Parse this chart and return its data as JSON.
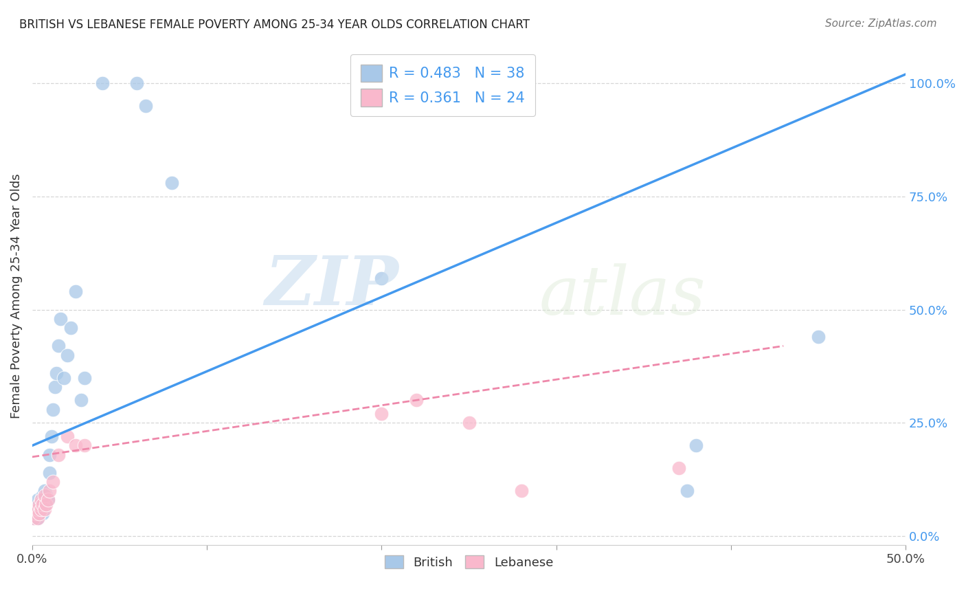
{
  "title": "BRITISH VS LEBANESE FEMALE POVERTY AMONG 25-34 YEAR OLDS CORRELATION CHART",
  "source": "Source: ZipAtlas.com",
  "ylabel": "Female Poverty Among 25-34 Year Olds",
  "xlim": [
    0.0,
    0.5
  ],
  "ylim": [
    -0.02,
    1.08
  ],
  "xticks": [
    0.0,
    0.1,
    0.2,
    0.3,
    0.4,
    0.5
  ],
  "xtick_labels": [
    "0.0%",
    "",
    "",
    "",
    "",
    "50.0%"
  ],
  "ytick_labels_right": [
    "100.0%",
    "75.0%",
    "50.0%",
    "25.0%",
    "0.0%"
  ],
  "ytick_positions_right": [
    1.0,
    0.75,
    0.5,
    0.25,
    0.0
  ],
  "british_R": 0.483,
  "british_N": 38,
  "lebanese_R": 0.361,
  "lebanese_N": 24,
  "british_color": "#A8C8E8",
  "lebanese_color": "#F9B8CC",
  "trend_british_color": "#4499EE",
  "trend_lebanese_color": "#EE88AA",
  "watermark_zip": "ZIP",
  "watermark_atlas": "atlas",
  "british_x": [
    0.001,
    0.002,
    0.002,
    0.003,
    0.003,
    0.003,
    0.004,
    0.004,
    0.005,
    0.005,
    0.006,
    0.006,
    0.007,
    0.007,
    0.008,
    0.009,
    0.01,
    0.01,
    0.011,
    0.012,
    0.013,
    0.014,
    0.015,
    0.016,
    0.018,
    0.02,
    0.022,
    0.025,
    0.028,
    0.03,
    0.04,
    0.06,
    0.065,
    0.08,
    0.2,
    0.375,
    0.38,
    0.45
  ],
  "british_y": [
    0.04,
    0.05,
    0.06,
    0.04,
    0.07,
    0.08,
    0.05,
    0.07,
    0.06,
    0.08,
    0.05,
    0.09,
    0.07,
    0.1,
    0.09,
    0.08,
    0.14,
    0.18,
    0.22,
    0.28,
    0.33,
    0.36,
    0.42,
    0.48,
    0.35,
    0.4,
    0.46,
    0.54,
    0.3,
    0.35,
    1.0,
    1.0,
    0.95,
    0.78,
    0.57,
    0.1,
    0.2,
    0.44
  ],
  "lebanese_x": [
    0.001,
    0.002,
    0.003,
    0.003,
    0.004,
    0.004,
    0.005,
    0.005,
    0.006,
    0.007,
    0.007,
    0.008,
    0.009,
    0.01,
    0.012,
    0.015,
    0.02,
    0.025,
    0.03,
    0.2,
    0.22,
    0.25,
    0.28,
    0.37
  ],
  "lebanese_y": [
    0.04,
    0.05,
    0.04,
    0.06,
    0.05,
    0.07,
    0.06,
    0.08,
    0.07,
    0.06,
    0.09,
    0.07,
    0.08,
    0.1,
    0.12,
    0.18,
    0.22,
    0.2,
    0.2,
    0.27,
    0.3,
    0.25,
    0.1,
    0.15
  ],
  "british_line_x": [
    0.0,
    0.5
  ],
  "british_line_y": [
    0.2,
    1.02
  ],
  "lebanese_line_x": [
    0.0,
    0.43
  ],
  "lebanese_line_y": [
    0.175,
    0.42
  ],
  "grid_color": "#CCCCCC",
  "background_color": "#FFFFFF"
}
